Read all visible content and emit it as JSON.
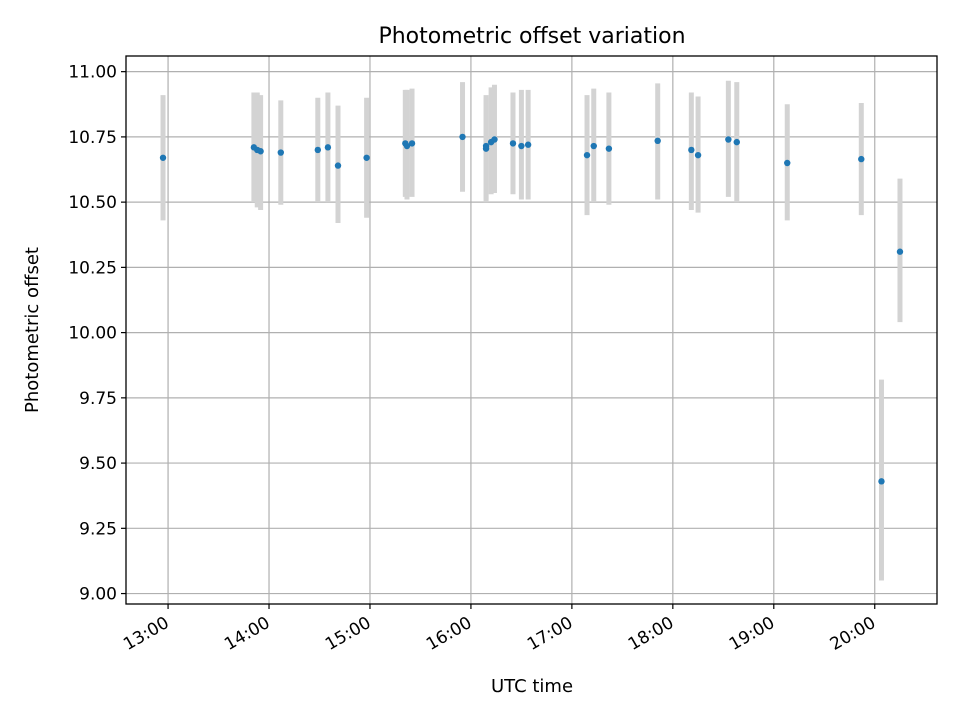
{
  "chart_data": {
    "type": "scatter",
    "title": "Photometric offset variation",
    "xlabel": "UTC time",
    "ylabel": "Photometric offset",
    "x_ticks": [
      "13:00",
      "14:00",
      "15:00",
      "16:00",
      "17:00",
      "18:00",
      "19:00",
      "20:00"
    ],
    "y_ticks": [
      "9.00",
      "9.25",
      "9.50",
      "9.75",
      "10.00",
      "10.25",
      "10.50",
      "10.75",
      "11.00"
    ],
    "xlim": [
      "12:35",
      "20:37"
    ],
    "ylim": [
      8.96,
      11.06
    ],
    "grid": true,
    "colors": {
      "points": "#1f77b4",
      "errorbars": "#d3d3d3",
      "grid": "#b0b0b0"
    },
    "points": [
      {
        "time": "12:57",
        "value": 10.67,
        "low": 10.43,
        "high": 10.91
      },
      {
        "time": "13:51",
        "value": 10.71,
        "low": 10.5,
        "high": 10.92
      },
      {
        "time": "13:53",
        "value": 10.7,
        "low": 10.48,
        "high": 10.92
      },
      {
        "time": "13:55",
        "value": 10.695,
        "low": 10.47,
        "high": 10.91
      },
      {
        "time": "14:07",
        "value": 10.69,
        "low": 10.49,
        "high": 10.89
      },
      {
        "time": "14:29",
        "value": 10.7,
        "low": 10.5,
        "high": 10.9
      },
      {
        "time": "14:35",
        "value": 10.71,
        "low": 10.5,
        "high": 10.92
      },
      {
        "time": "14:41",
        "value": 10.64,
        "low": 10.42,
        "high": 10.87
      },
      {
        "time": "14:58",
        "value": 10.67,
        "low": 10.44,
        "high": 10.9
      },
      {
        "time": "15:21",
        "value": 10.725,
        "low": 10.52,
        "high": 10.93
      },
      {
        "time": "15:22",
        "value": 10.715,
        "low": 10.51,
        "high": 10.93
      },
      {
        "time": "15:25",
        "value": 10.725,
        "low": 10.52,
        "high": 10.935
      },
      {
        "time": "15:55",
        "value": 10.75,
        "low": 10.54,
        "high": 10.96
      },
      {
        "time": "16:09",
        "value": 10.715,
        "low": 10.51,
        "high": 10.91
      },
      {
        "time": "16:09",
        "value": 10.705,
        "low": 10.5,
        "high": 10.9
      },
      {
        "time": "16:12",
        "value": 10.73,
        "low": 10.53,
        "high": 10.94
      },
      {
        "time": "16:14",
        "value": 10.74,
        "low": 10.535,
        "high": 10.95
      },
      {
        "time": "16:25",
        "value": 10.725,
        "low": 10.53,
        "high": 10.92
      },
      {
        "time": "16:30",
        "value": 10.715,
        "low": 10.51,
        "high": 10.93
      },
      {
        "time": "16:34",
        "value": 10.72,
        "low": 10.51,
        "high": 10.93
      },
      {
        "time": "17:09",
        "value": 10.68,
        "low": 10.45,
        "high": 10.91
      },
      {
        "time": "17:13",
        "value": 10.715,
        "low": 10.5,
        "high": 10.935
      },
      {
        "time": "17:22",
        "value": 10.705,
        "low": 10.49,
        "high": 10.92
      },
      {
        "time": "17:51",
        "value": 10.735,
        "low": 10.51,
        "high": 10.955
      },
      {
        "time": "18:11",
        "value": 10.7,
        "low": 10.47,
        "high": 10.92
      },
      {
        "time": "18:15",
        "value": 10.68,
        "low": 10.46,
        "high": 10.905
      },
      {
        "time": "18:33",
        "value": 10.74,
        "low": 10.52,
        "high": 10.965
      },
      {
        "time": "18:38",
        "value": 10.73,
        "low": 10.5,
        "high": 10.96
      },
      {
        "time": "19:08",
        "value": 10.65,
        "low": 10.43,
        "high": 10.875
      },
      {
        "time": "19:52",
        "value": 10.665,
        "low": 10.45,
        "high": 10.88
      },
      {
        "time": "20:04",
        "value": 9.43,
        "low": 9.05,
        "high": 9.82
      },
      {
        "time": "20:15",
        "value": 10.31,
        "low": 10.04,
        "high": 10.59
      }
    ]
  }
}
